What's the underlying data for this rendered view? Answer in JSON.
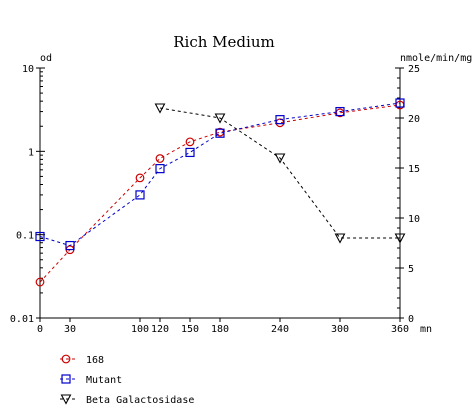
{
  "chart_data": {
    "type": "line",
    "title": "Rich Medium",
    "x_unit": "mn",
    "xlim": [
      0,
      360
    ],
    "x_ticks": [
      0,
      30,
      100,
      120,
      150,
      180,
      240,
      300,
      360
    ],
    "y_left": {
      "label": "od",
      "scale": "log",
      "lim": [
        0.01,
        10
      ],
      "ticks": [
        0.01,
        0.1,
        1,
        10
      ],
      "tick_labels": [
        "0.01",
        "0.1",
        "1",
        "10"
      ]
    },
    "y_right": {
      "label": "nmole/min/mg",
      "scale": "linear",
      "lim": [
        0,
        25
      ],
      "ticks": [
        0,
        5,
        10,
        15,
        20,
        25
      ]
    },
    "legend_position": "bottom-left",
    "series": [
      {
        "name": "168",
        "axis": "left",
        "color": "#cc0000",
        "marker": "circle",
        "x": [
          0,
          30,
          100,
          120,
          150,
          180,
          240,
          300,
          360
        ],
        "y": [
          0.027,
          0.066,
          0.48,
          0.82,
          1.3,
          1.7,
          2.2,
          2.9,
          3.6
        ]
      },
      {
        "name": "Mutant",
        "axis": "left",
        "color": "#0000cc",
        "marker": "square",
        "x": [
          0,
          30,
          100,
          120,
          150,
          180,
          240,
          300,
          360
        ],
        "y": [
          0.095,
          0.074,
          0.3,
          0.62,
          0.97,
          1.65,
          2.4,
          3.0,
          3.8
        ]
      },
      {
        "name": "Beta Galactosidase",
        "axis": "right",
        "color": "#000000",
        "marker": "triangle-down",
        "x": [
          120,
          180,
          240,
          300,
          360
        ],
        "y": [
          21,
          20,
          16,
          8,
          8
        ]
      }
    ]
  }
}
